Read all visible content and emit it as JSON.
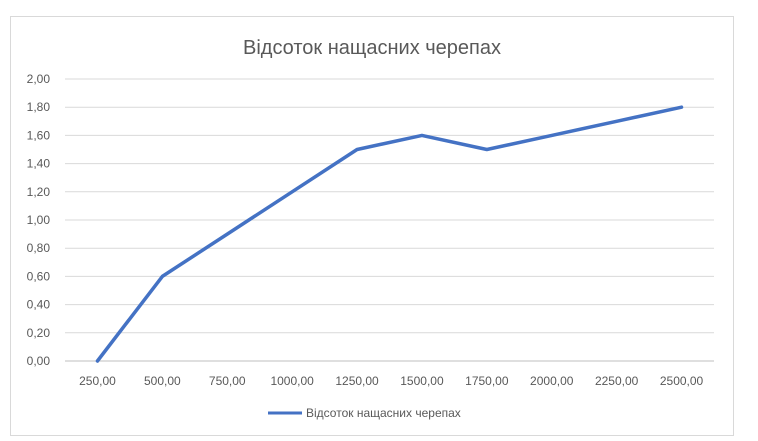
{
  "chart_data": {
    "type": "line",
    "title": "Відсоток нащасних черепах",
    "xlabel": "",
    "ylabel": "",
    "x": [
      250,
      500,
      750,
      1000,
      1250,
      1500,
      1750,
      2000,
      2250,
      2500
    ],
    "categories": [
      "250,00",
      "500,00",
      "750,00",
      "1000,00",
      "1250,00",
      "1500,00",
      "1750,00",
      "2000,00",
      "2250,00",
      "2500,00"
    ],
    "series": [
      {
        "name": "Відсоток нащасних черепах",
        "values": [
          0.0,
          0.6,
          0.9,
          1.2,
          1.5,
          1.6,
          1.5,
          1.6,
          1.7,
          1.8
        ],
        "color": "#4472C4"
      }
    ],
    "y_ticks": [
      "0,00",
      "0,20",
      "0,40",
      "0,60",
      "0,80",
      "1,00",
      "1,20",
      "1,40",
      "1,60",
      "1,80",
      "2,00"
    ],
    "ylim": [
      0,
      2.0
    ],
    "grid": true,
    "legend": "bottom"
  }
}
